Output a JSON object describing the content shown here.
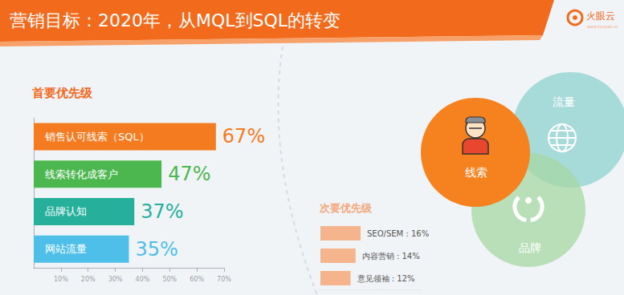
{
  "header": {
    "title": "营销目标：2020年，从MQL到SQL的转变",
    "logo": "火眼云",
    "logo_url": "www.huoyan.io"
  },
  "chart_data": [
    {
      "type": "bar",
      "orientation": "horizontal",
      "title": "首要优先级",
      "categories": [
        "销售认可线索（SQL）",
        "线索转化成客户",
        "品牌认知",
        "网站流量"
      ],
      "values": [
        67,
        47,
        37,
        35
      ],
      "value_labels": [
        "67%",
        "47%",
        "37%",
        "35%"
      ],
      "colors": [
        "#f47b20",
        "#4cb74f",
        "#26b09c",
        "#4dbfe9"
      ],
      "xlim": [
        0,
        70
      ],
      "xticks": [
        {
          "value": 10,
          "label": "10%"
        },
        {
          "value": 20,
          "label": "20%"
        },
        {
          "value": 30,
          "label": "30%"
        },
        {
          "value": 40,
          "label": "40%"
        },
        {
          "value": 50,
          "label": "50%"
        },
        {
          "value": 60,
          "label": "60%"
        },
        {
          "value": 70,
          "label": "70%"
        }
      ],
      "grid": false,
      "data_labels": true,
      "tick_labels": "x"
    },
    {
      "type": "bar",
      "orientation": "horizontal",
      "title": "次要优先级",
      "categories": [
        "SEO/SEM",
        "内容营销",
        "意见领袖"
      ],
      "values": [
        16,
        14,
        12
      ],
      "value_labels": [
        "SEO/SEM : 16%",
        "内容营销 : 14%",
        "意见领袖 : 12%"
      ],
      "color": "#f6b48c",
      "xlim": [
        0,
        40
      ],
      "grid": false,
      "data_labels": true,
      "tick_labels": false
    }
  ],
  "venn": {
    "sets": [
      {
        "label": "流量",
        "color": "#8ed3cf"
      },
      {
        "label": "品牌",
        "color": "#a5d8a3"
      },
      {
        "label": "线索",
        "color": "#f5821f"
      }
    ]
  }
}
